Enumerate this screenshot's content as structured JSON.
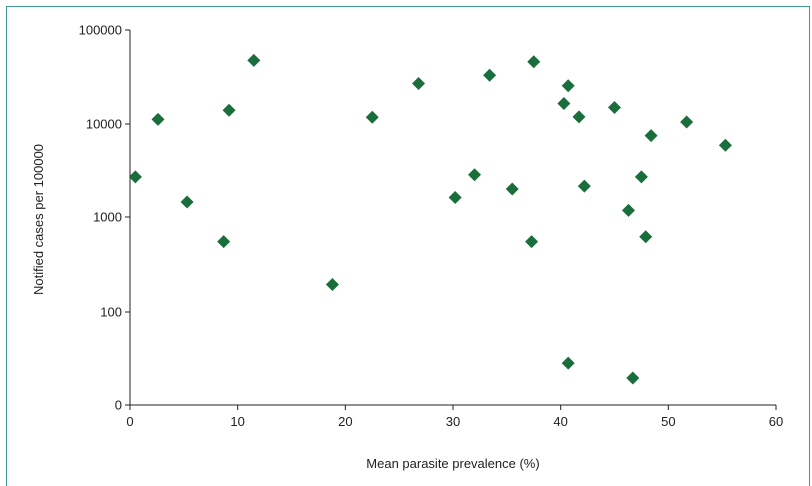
{
  "chart_data": {
    "type": "scatter",
    "xlabel": "Mean parasite prevalence (%)",
    "ylabel": "Notified cases per 100000",
    "xlim": [
      0,
      60
    ],
    "x_ticks": [
      0,
      10,
      20,
      30,
      40,
      50,
      60
    ],
    "y_scale": "log",
    "y_ticks": [
      {
        "value": 0,
        "label": "0"
      },
      {
        "value": 100,
        "label": "100"
      },
      {
        "value": 1000,
        "label": "1000"
      },
      {
        "value": 10000,
        "label": "10000"
      },
      {
        "value": 100000,
        "label": "100000"
      }
    ],
    "marker": "diamond",
    "marker_color": "#1a6e3c",
    "grid": false,
    "points": [
      {
        "x": 0.5,
        "y": 2700
      },
      {
        "x": 2.6,
        "y": 11200
      },
      {
        "x": 5.3,
        "y": 1450
      },
      {
        "x": 8.7,
        "y": 550
      },
      {
        "x": 9.2,
        "y": 14000
      },
      {
        "x": 11.5,
        "y": 47500
      },
      {
        "x": 18.8,
        "y": 195
      },
      {
        "x": 22.5,
        "y": 11800
      },
      {
        "x": 26.8,
        "y": 27000
      },
      {
        "x": 30.2,
        "y": 1620
      },
      {
        "x": 32.0,
        "y": 2850
      },
      {
        "x": 33.4,
        "y": 33000
      },
      {
        "x": 35.5,
        "y": 2000
      },
      {
        "x": 37.3,
        "y": 550
      },
      {
        "x": 37.5,
        "y": 46000
      },
      {
        "x": 40.3,
        "y": 16500
      },
      {
        "x": 40.7,
        "y": 25500
      },
      {
        "x": 40.7,
        "y": 45
      },
      {
        "x": 41.7,
        "y": 11900
      },
      {
        "x": 42.2,
        "y": 2150
      },
      {
        "x": 45.0,
        "y": 15000
      },
      {
        "x": 46.3,
        "y": 1180
      },
      {
        "x": 46.7,
        "y": 29
      },
      {
        "x": 47.5,
        "y": 2700
      },
      {
        "x": 47.9,
        "y": 620
      },
      {
        "x": 48.4,
        "y": 7500
      },
      {
        "x": 51.7,
        "y": 10500
      },
      {
        "x": 55.3,
        "y": 5900
      }
    ]
  }
}
